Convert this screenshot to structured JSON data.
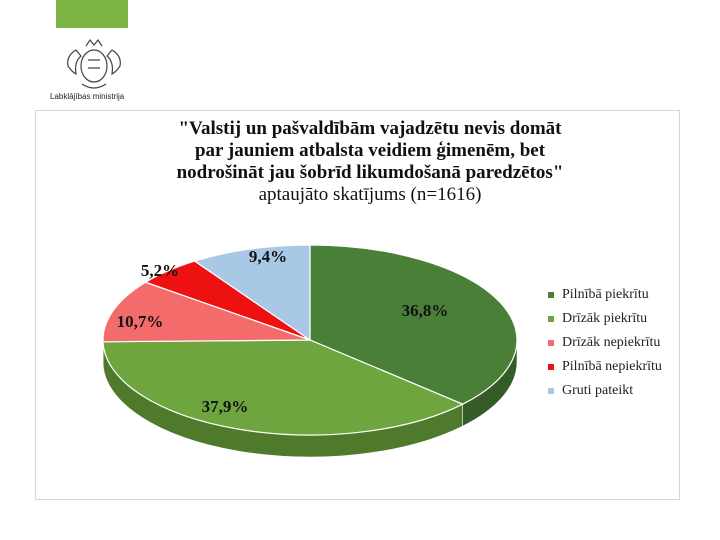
{
  "header": {
    "logo_icon": "latvia-coat-of-arms-icon",
    "logo_text": "Labklājības ministrija",
    "accent_color": "#7db544"
  },
  "chart_data": {
    "type": "pie",
    "title_lines": [
      "\"Valstij un pašvaldībām vajadzētu nevis domāt",
      "par jauniem atbalsta veidiem ģimenēm, bet",
      "nodrošināt jau šobrīd likumdošanā paredzētos\""
    ],
    "subtitle": "aptaujāto skatījums (n=1616)",
    "legend_position": "right",
    "slices": [
      {
        "label": "Pilnībā piekrītu",
        "value": 36.8,
        "display": "36,8%",
        "color": "#4a7f37",
        "side": "#355c27"
      },
      {
        "label": "Drīzāk piekrītu",
        "value": 37.9,
        "display": "37,9%",
        "color": "#6fa53f",
        "side": "#4f7a2b"
      },
      {
        "label": "Drīzāk nepiekrītu",
        "value": 10.7,
        "display": "10,7%",
        "color": "#f36b6b",
        "side": "#b84a4a"
      },
      {
        "label": "Pilnībā nepiekrītu",
        "value": 5.2,
        "display": "5,2%",
        "color": "#ee1111",
        "side": "#a80b0b"
      },
      {
        "label": "Gruti pateikt",
        "value": 9.4,
        "display": "9,4%",
        "color": "#a9c8e6",
        "side": "#7b97b2"
      }
    ]
  }
}
